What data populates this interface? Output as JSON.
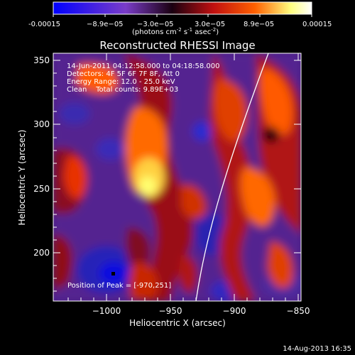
{
  "title": "Reconstructed RHESSI Image",
  "colorbar": {
    "tick_labels": [
      "-0.00015",
      "−8.9e−05",
      "−3.0e−05",
      "3.0e−05",
      "8.9e−05",
      "0.00015"
    ],
    "unit_prefix": "(photons cm",
    "unit_exp1": "-2",
    "unit_mid": " s",
    "unit_exp2": "-1",
    "unit_mid2": " asec",
    "unit_exp3": "-2",
    "unit_suffix": ")",
    "colors": [
      "#0000ff",
      "#7a3cc8",
      "#000000",
      "#c01010",
      "#ff6000",
      "#ffff80",
      "#ffffff"
    ]
  },
  "annotations": {
    "time_range": "14-Jun-2011 04:12:58.000 to 04:18:58.000",
    "detectors": "Detectors: 4F 5F 6F 7F 8F, Att 0",
    "energy": "Energy Range: 12.0 - 25.0 keV",
    "clean": "Clean    Total counts: 9.89E+03",
    "peak": "Position of Peak = [-970,251]"
  },
  "axes": {
    "xlabel": "Heliocentric X (arcsec)",
    "ylabel": "Heliocentric Y (arcsec)",
    "x_ticks": [
      "−1000",
      "−950",
      "−900",
      "−850"
    ],
    "y_ticks": [
      "200",
      "250",
      "300",
      "350"
    ],
    "xlim": [
      -1042,
      -848
    ],
    "ylim": [
      165,
      356
    ]
  },
  "footer": {
    "date": "14-Aug-2013 16:35"
  }
}
